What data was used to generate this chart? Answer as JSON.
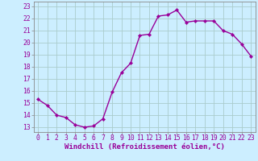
{
  "x": [
    0,
    1,
    2,
    3,
    4,
    5,
    6,
    7,
    8,
    9,
    10,
    11,
    12,
    13,
    14,
    15,
    16,
    17,
    18,
    19,
    20,
    21,
    22,
    23
  ],
  "y": [
    15.3,
    14.8,
    14.0,
    13.8,
    13.2,
    13.0,
    13.1,
    13.7,
    15.9,
    17.5,
    18.3,
    20.6,
    20.7,
    22.2,
    22.3,
    22.7,
    21.7,
    21.8,
    21.8,
    21.8,
    21.0,
    20.7,
    19.9,
    18.9
  ],
  "line_color": "#990099",
  "marker": "D",
  "marker_size": 2.2,
  "linewidth": 1.0,
  "bg_color": "#cceeff",
  "grid_color": "#aacccc",
  "xlabel": "Windchill (Refroidissement éolien,°C)",
  "xlabel_fontsize": 6.5,
  "xlabel_color": "#990099",
  "ylabel_ticks": [
    13,
    14,
    15,
    16,
    17,
    18,
    19,
    20,
    21,
    22,
    23
  ],
  "xticks": [
    0,
    1,
    2,
    3,
    4,
    5,
    6,
    7,
    8,
    9,
    10,
    11,
    12,
    13,
    14,
    15,
    16,
    17,
    18,
    19,
    20,
    21,
    22,
    23
  ],
  "ylim": [
    12.6,
    23.4
  ],
  "xlim": [
    -0.5,
    23.5
  ],
  "tick_color": "#990099",
  "tick_fontsize": 5.8,
  "axis_color": "#888888",
  "spine_color": "#888888"
}
